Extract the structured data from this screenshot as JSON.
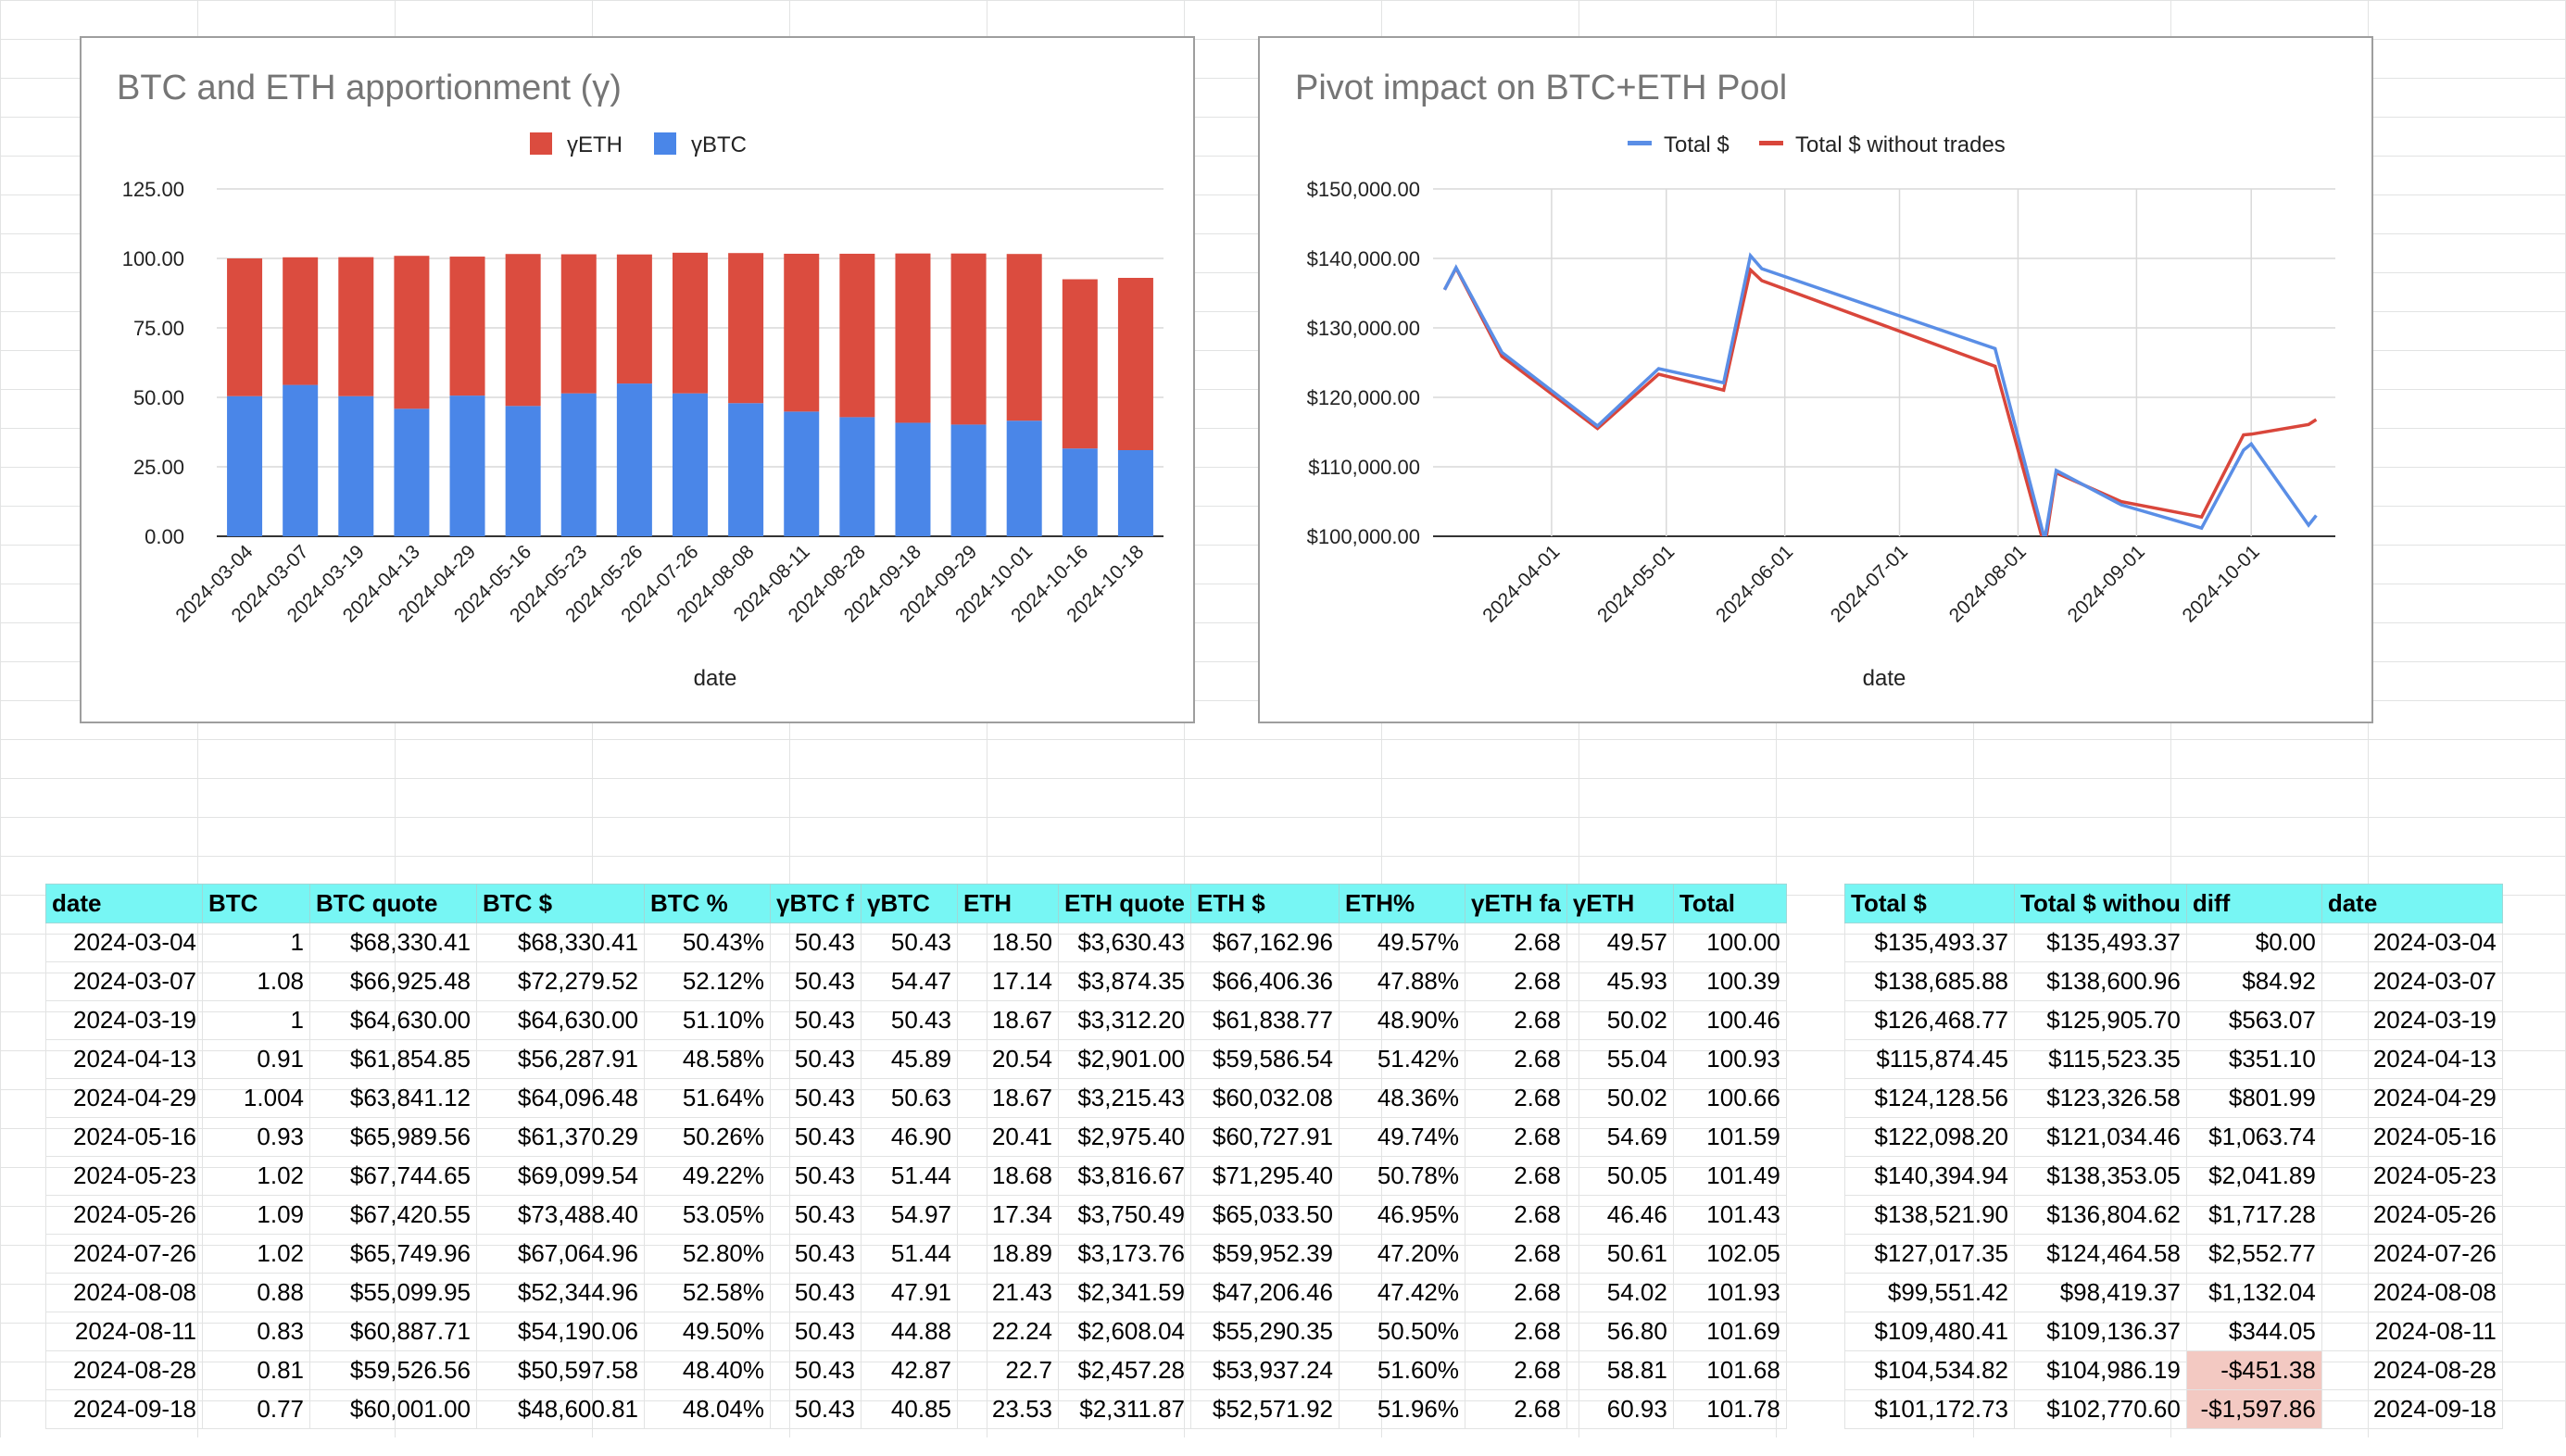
{
  "chart1": {
    "title": "BTC and ETH apportionment (γ)",
    "xlabel": "date",
    "legend": [
      "γETH",
      "γBTC"
    ],
    "colors": {
      "eth": "#db4c3f",
      "btc": "#4a86e8"
    },
    "yticks": [
      "0.00",
      "25.00",
      "50.00",
      "75.00",
      "100.00",
      "125.00"
    ]
  },
  "chart2": {
    "title": "Pivot impact on BTC+ETH Pool",
    "xlabel": "date",
    "legend": [
      "Total $",
      "Total $ without trades"
    ],
    "colors": {
      "total": "#5a8ee6",
      "without": "#d9463b"
    },
    "yticks": [
      "$100,000.00",
      "$110,000.00",
      "$120,000.00",
      "$130,000.00",
      "$140,000.00",
      "$150,000.00"
    ],
    "xticks": [
      "2024-04-01",
      "2024-05-01",
      "2024-06-01",
      "2024-07-01",
      "2024-08-01",
      "2024-09-01",
      "2024-10-01"
    ]
  },
  "chart_data": [
    {
      "type": "bar",
      "stacked": true,
      "title": "BTC and ETH apportionment (γ)",
      "xlabel": "date",
      "ylabel": "",
      "ylim": [
        0,
        125
      ],
      "categories": [
        "2024-03-04",
        "2024-03-07",
        "2024-03-19",
        "2024-04-13",
        "2024-04-29",
        "2024-05-16",
        "2024-05-23",
        "2024-05-26",
        "2024-07-26",
        "2024-08-08",
        "2024-08-11",
        "2024-08-28",
        "2024-09-18",
        "2024-09-29",
        "2024-10-01",
        "2024-10-16",
        "2024-10-18"
      ],
      "series": [
        {
          "name": "γBTC",
          "values": [
            50.43,
            54.47,
            50.43,
            45.89,
            50.63,
            46.9,
            51.44,
            54.97,
            51.44,
            47.91,
            44.88,
            42.87,
            40.85,
            40.2,
            41.6,
            31.6,
            31.0
          ]
        },
        {
          "name": "γETH",
          "values": [
            49.57,
            45.93,
            50.02,
            55.04,
            50.02,
            54.69,
            50.05,
            46.46,
            50.61,
            54.02,
            56.8,
            58.81,
            60.93,
            61.57,
            60.0,
            60.9,
            62.0
          ]
        }
      ],
      "legend": "top",
      "grid": true
    },
    {
      "type": "line",
      "title": "Pivot impact on BTC+ETH Pool",
      "xlabel": "date",
      "ylabel": "",
      "ylim": [
        100000,
        150000
      ],
      "x": [
        "2024-03-04",
        "2024-03-07",
        "2024-03-19",
        "2024-04-13",
        "2024-04-29",
        "2024-05-16",
        "2024-05-23",
        "2024-05-26",
        "2024-07-26",
        "2024-08-08",
        "2024-08-11",
        "2024-08-28",
        "2024-09-18",
        "2024-09-29",
        "2024-10-01",
        "2024-10-16",
        "2024-10-18"
      ],
      "series": [
        {
          "name": "Total $",
          "values": [
            135493.37,
            138685.88,
            126468.77,
            115874.45,
            124128.56,
            122098.2,
            140394.94,
            138521.9,
            127017.35,
            99551.42,
            109480.41,
            104534.82,
            101172.73,
            112400,
            113300,
            101600,
            103000
          ]
        },
        {
          "name": "Total $ without trades",
          "values": [
            135493.37,
            138600.96,
            125905.7,
            115523.35,
            123326.58,
            121034.46,
            138353.05,
            136804.62,
            124464.58,
            98419.37,
            109136.37,
            104986.19,
            102770.6,
            114600,
            114700,
            116100,
            116800
          ]
        }
      ],
      "legend": "top",
      "grid": true
    }
  ],
  "table_left": {
    "headers": [
      "date",
      "BTC",
      "BTC quote",
      "BTC $",
      "BTC %",
      "γBTC f",
      "γBTC",
      "ETH",
      "ETH quote",
      "ETH $",
      "ETH%",
      "γETH fa",
      "γETH",
      "Total"
    ],
    "rows": [
      [
        "2024-03-04",
        "1",
        "$68,330.41",
        "$68,330.41",
        "50.43%",
        "50.43",
        "50.43",
        "18.50",
        "$3,630.43",
        "$67,162.96",
        "49.57%",
        "2.68",
        "49.57",
        "100.00"
      ],
      [
        "2024-03-07",
        "1.08",
        "$66,925.48",
        "$72,279.52",
        "52.12%",
        "50.43",
        "54.47",
        "17.14",
        "$3,874.35",
        "$66,406.36",
        "47.88%",
        "2.68",
        "45.93",
        "100.39"
      ],
      [
        "2024-03-19",
        "1",
        "$64,630.00",
        "$64,630.00",
        "51.10%",
        "50.43",
        "50.43",
        "18.67",
        "$3,312.20",
        "$61,838.77",
        "48.90%",
        "2.68",
        "50.02",
        "100.46"
      ],
      [
        "2024-04-13",
        "0.91",
        "$61,854.85",
        "$56,287.91",
        "48.58%",
        "50.43",
        "45.89",
        "20.54",
        "$2,901.00",
        "$59,586.54",
        "51.42%",
        "2.68",
        "55.04",
        "100.93"
      ],
      [
        "2024-04-29",
        "1.004",
        "$63,841.12",
        "$64,096.48",
        "51.64%",
        "50.43",
        "50.63",
        "18.67",
        "$3,215.43",
        "$60,032.08",
        "48.36%",
        "2.68",
        "50.02",
        "100.66"
      ],
      [
        "2024-05-16",
        "0.93",
        "$65,989.56",
        "$61,370.29",
        "50.26%",
        "50.43",
        "46.90",
        "20.41",
        "$2,975.40",
        "$60,727.91",
        "49.74%",
        "2.68",
        "54.69",
        "101.59"
      ],
      [
        "2024-05-23",
        "1.02",
        "$67,744.65",
        "$69,099.54",
        "49.22%",
        "50.43",
        "51.44",
        "18.68",
        "$3,816.67",
        "$71,295.40",
        "50.78%",
        "2.68",
        "50.05",
        "101.49"
      ],
      [
        "2024-05-26",
        "1.09",
        "$67,420.55",
        "$73,488.40",
        "53.05%",
        "50.43",
        "54.97",
        "17.34",
        "$3,750.49",
        "$65,033.50",
        "46.95%",
        "2.68",
        "46.46",
        "101.43"
      ],
      [
        "2024-07-26",
        "1.02",
        "$65,749.96",
        "$67,064.96",
        "52.80%",
        "50.43",
        "51.44",
        "18.89",
        "$3,173.76",
        "$59,952.39",
        "47.20%",
        "2.68",
        "50.61",
        "102.05"
      ],
      [
        "2024-08-08",
        "0.88",
        "$55,099.95",
        "$52,344.96",
        "52.58%",
        "50.43",
        "47.91",
        "21.43",
        "$2,341.59",
        "$47,206.46",
        "47.42%",
        "2.68",
        "54.02",
        "101.93"
      ],
      [
        "2024-08-11",
        "0.83",
        "$60,887.71",
        "$54,190.06",
        "49.50%",
        "50.43",
        "44.88",
        "22.24",
        "$2,608.04",
        "$55,290.35",
        "50.50%",
        "2.68",
        "56.80",
        "101.69"
      ],
      [
        "2024-08-28",
        "0.81",
        "$59,526.56",
        "$50,597.58",
        "48.40%",
        "50.43",
        "42.87",
        "22.7",
        "$2,457.28",
        "$53,937.24",
        "51.60%",
        "2.68",
        "58.81",
        "101.68"
      ],
      [
        "2024-09-18",
        "0.77",
        "$60,001.00",
        "$48,600.81",
        "48.04%",
        "50.43",
        "40.85",
        "23.53",
        "$2,311.87",
        "$52,571.92",
        "51.96%",
        "2.68",
        "60.93",
        "101.78"
      ]
    ]
  },
  "table_right": {
    "headers": [
      "Total $",
      "Total $ withou",
      "diff",
      "date"
    ],
    "rows": [
      [
        "$135,493.37",
        "$135,493.37",
        "$0.00",
        "2024-03-04"
      ],
      [
        "$138,685.88",
        "$138,600.96",
        "$84.92",
        "2024-03-07"
      ],
      [
        "$126,468.77",
        "$125,905.70",
        "$563.07",
        "2024-03-19"
      ],
      [
        "$115,874.45",
        "$115,523.35",
        "$351.10",
        "2024-04-13"
      ],
      [
        "$124,128.56",
        "$123,326.58",
        "$801.99",
        "2024-04-29"
      ],
      [
        "$122,098.20",
        "$121,034.46",
        "$1,063.74",
        "2024-05-16"
      ],
      [
        "$140,394.94",
        "$138,353.05",
        "$2,041.89",
        "2024-05-23"
      ],
      [
        "$138,521.90",
        "$136,804.62",
        "$1,717.28",
        "2024-05-26"
      ],
      [
        "$127,017.35",
        "$124,464.58",
        "$2,552.77",
        "2024-07-26"
      ],
      [
        "$99,551.42",
        "$98,419.37",
        "$1,132.04",
        "2024-08-08"
      ],
      [
        "$109,480.41",
        "$109,136.37",
        "$344.05",
        "2024-08-11"
      ],
      [
        "$104,534.82",
        "$104,986.19",
        "-$451.38",
        "2024-08-28"
      ],
      [
        "$101,172.73",
        "$102,770.60",
        "-$1,597.86",
        "2024-09-18"
      ]
    ]
  }
}
